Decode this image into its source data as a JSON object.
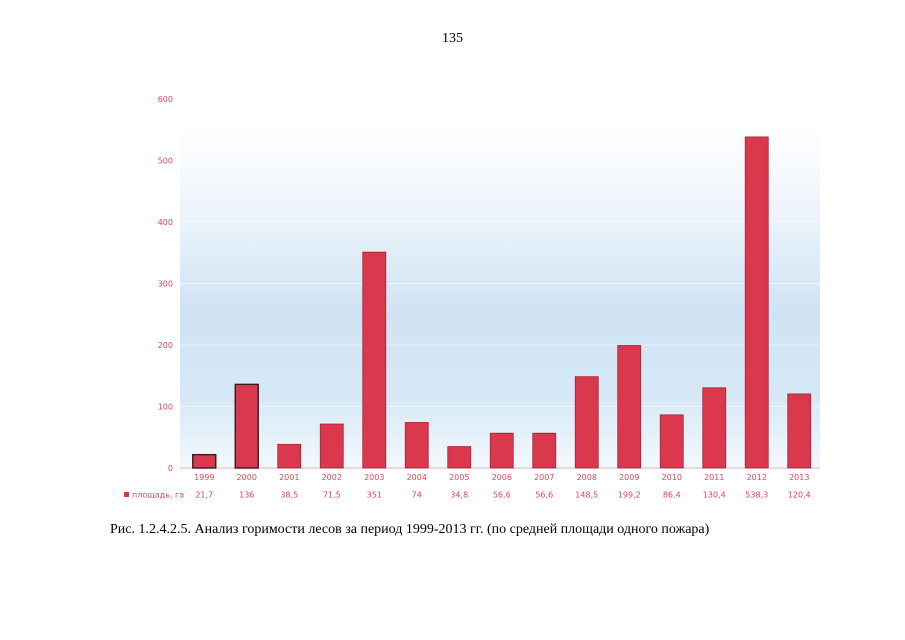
{
  "page_number": "135",
  "caption": "Рис. 1.2.4.2.5. Анализ горимости лесов за период 1999-2013 гг. (по средней площади одного пожара)",
  "colors": {
    "bar": "#d9384d",
    "bar_edge": "#a81f33",
    "text": "#e0445a"
  },
  "chart_data": {
    "type": "bar",
    "categories": [
      "1999",
      "2000",
      "2001",
      "2002",
      "2003",
      "2004",
      "2005",
      "2006",
      "2007",
      "2008",
      "2009",
      "2010",
      "2011",
      "2012",
      "2013"
    ],
    "series": [
      {
        "name": "площадь, га",
        "values": [
          21.7,
          136,
          38.5,
          71.5,
          351,
          74,
          34.8,
          56.6,
          56.6,
          148.5,
          199.2,
          86.4,
          130.4,
          538.3,
          120.4
        ],
        "labels": [
          "21,7",
          "136",
          "38,5",
          "71,5",
          "351",
          "74",
          "34,8",
          "56,6",
          "56,6",
          "148,5",
          "199,2",
          "86,4",
          "130,4",
          "538,3",
          "120,4"
        ]
      }
    ],
    "yticks": [
      "0",
      "100",
      "200",
      "300",
      "400",
      "500",
      "600"
    ],
    "ylim": [
      0,
      600
    ],
    "data_table": true,
    "title": "",
    "xlabel": "",
    "ylabel": ""
  }
}
